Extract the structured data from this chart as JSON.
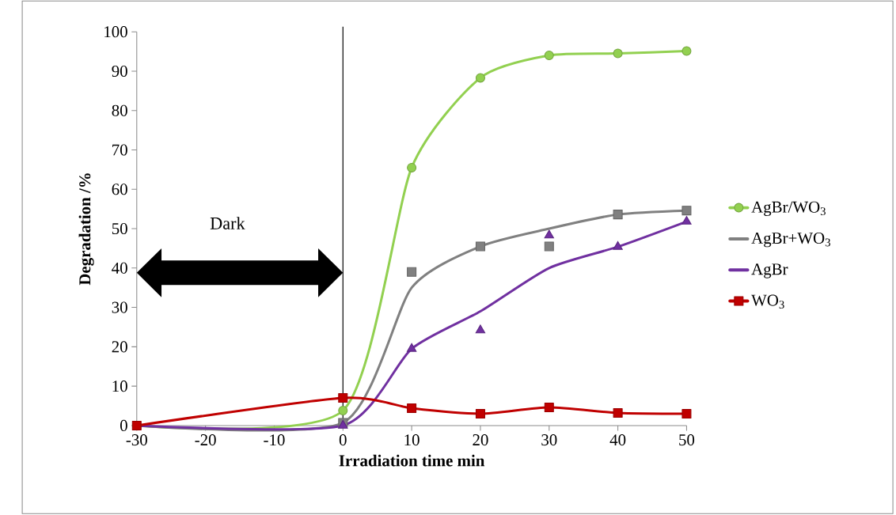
{
  "chart_data": {
    "type": "line",
    "xlabel": "Irradiation time min",
    "ylabel": "Degradation /%",
    "x": [
      -30,
      0,
      10,
      20,
      30,
      40,
      50
    ],
    "series": [
      {
        "name": "AgBr/WO$_{3}$",
        "color": "#92d050",
        "marker": "circle",
        "values": [
          0,
          3.8,
          65.5,
          88.3,
          94.0,
          94.5,
          95.1
        ]
      },
      {
        "name": "AgBr+WO$_{3}$",
        "color": "#808080",
        "values": [
          0,
          0.7,
          35,
          45.5,
          50,
          53.6,
          54.6
        ]
      },
      {
        "name": "AgBr",
        "color": "#7030a0",
        "values": [
          0,
          0,
          19.5,
          29,
          40,
          45.4,
          51.8
        ]
      },
      {
        "name": "WO$_{3}$",
        "color": "#c00000",
        "marker": "square",
        "values": [
          0,
          7,
          4.4,
          3,
          4.6,
          3.2,
          3
        ]
      },
      {
        "type": "scatter",
        "marker": "square",
        "color": "#808080",
        "values": [
          null,
          0.7,
          39,
          45.5,
          45.5,
          53.6,
          54.6
        ]
      },
      {
        "type": "scatter",
        "marker": "triangle",
        "color": "#7030a0",
        "values": [
          null,
          0,
          19.5,
          24.2,
          48.3,
          45.4,
          51.8
        ]
      }
    ],
    "xlim": [
      -30,
      50
    ],
    "xticks": [
      -30,
      -20,
      -10,
      0,
      10,
      20,
      30,
      40,
      50
    ],
    "ylim": [
      0,
      100
    ],
    "yticks": [
      0,
      10,
      20,
      30,
      40,
      50,
      60,
      70,
      80,
      90,
      100
    ],
    "ref_lines": [
      {
        "axis": "x",
        "value": 0,
        "color": "#000000"
      }
    ],
    "annotations": [
      "Dark"
    ],
    "grid": false,
    "legend": "right"
  }
}
